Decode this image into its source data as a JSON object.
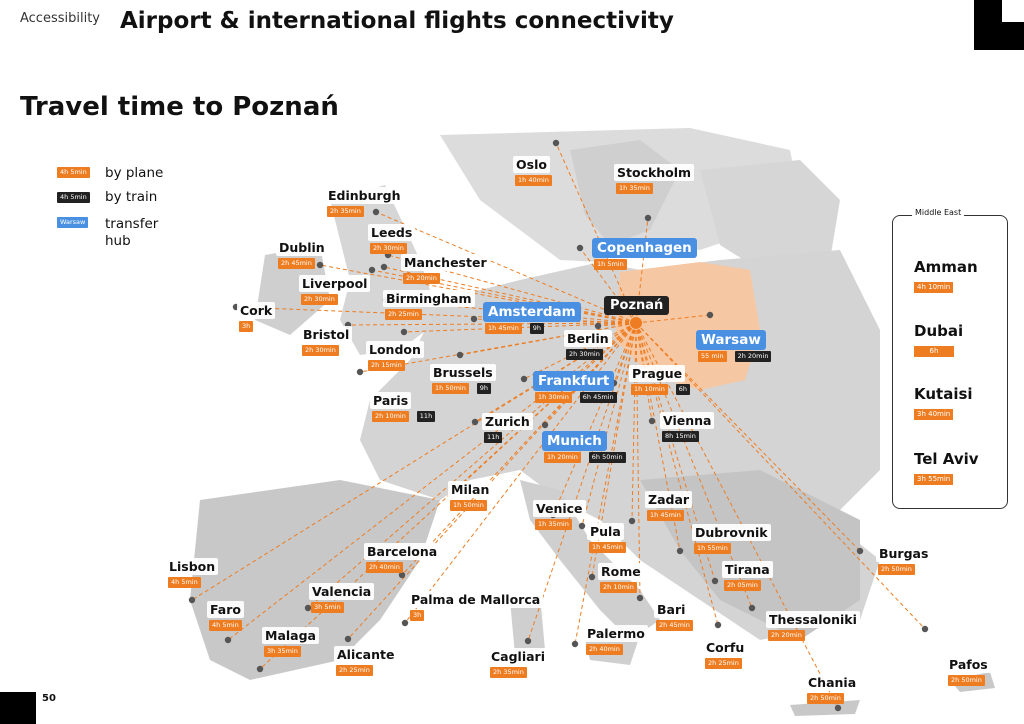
{
  "header": {
    "section": "Accessibility",
    "title": "Airport & international flights connectivity"
  },
  "page_title": "Travel time to Poznań",
  "page_number": "50",
  "colors": {
    "plane": "#ee7d22",
    "train": "#222222",
    "hub": "#4a90e2",
    "poland": "#f6c7a3",
    "land": "#d4d4d4"
  },
  "legend": {
    "plane_badge": "4h 5min",
    "plane_label": "by plane",
    "train_badge": "4h 5min",
    "train_label": "by train",
    "hub_badge": "Warsaw",
    "hub_label": "transfer hub"
  },
  "origin": {
    "name": "Poznań"
  },
  "cities": [
    {
      "name": "Oslo",
      "plane": "1h 40min",
      "hub": false
    },
    {
      "name": "Stockholm",
      "plane": "1h 35min",
      "hub": false
    },
    {
      "name": "Copenhagen",
      "plane": "1h 5min",
      "hub": true
    },
    {
      "name": "Edinburgh",
      "plane": "2h 35min",
      "hub": false
    },
    {
      "name": "Leeds",
      "plane": "2h 30min",
      "hub": false
    },
    {
      "name": "Dublin",
      "plane": "2h 45min",
      "hub": false
    },
    {
      "name": "Manchester",
      "plane": "2h 20min",
      "hub": false
    },
    {
      "name": "Liverpool",
      "plane": "2h 30min",
      "hub": false
    },
    {
      "name": "Birmingham",
      "plane": "2h 25min",
      "hub": false
    },
    {
      "name": "Cork",
      "plane": "3h",
      "hub": false
    },
    {
      "name": "Amsterdam",
      "plane": "1h 45min",
      "train": "9h",
      "hub": true
    },
    {
      "name": "Bristol",
      "plane": "2h 30min",
      "hub": false
    },
    {
      "name": "London",
      "plane": "2h 15min",
      "hub": false
    },
    {
      "name": "Berlin",
      "train": "2h 30min",
      "hub": false
    },
    {
      "name": "Warsaw",
      "plane": "55 min",
      "train": "2h 20min",
      "hub": true
    },
    {
      "name": "Brussels",
      "plane": "1h 50min",
      "train": "9h",
      "hub": false
    },
    {
      "name": "Frankfurt",
      "plane": "1h 30min",
      "train": "6h 45min",
      "hub": true
    },
    {
      "name": "Prague",
      "plane": "1h 10min",
      "train": "6h",
      "hub": false
    },
    {
      "name": "Paris",
      "plane": "2h 10min",
      "train": "11h",
      "hub": false
    },
    {
      "name": "Zurich",
      "train": "11h",
      "hub": false
    },
    {
      "name": "Vienna",
      "train": "8h 15min",
      "hub": false
    },
    {
      "name": "Munich",
      "plane": "1h 20min",
      "train": "6h 50min",
      "hub": true
    },
    {
      "name": "Milan",
      "plane": "1h 50min",
      "hub": false
    },
    {
      "name": "Zadar",
      "plane": "1h 45min",
      "hub": false
    },
    {
      "name": "Venice",
      "plane": "1h 35min",
      "hub": false
    },
    {
      "name": "Dubrovnik",
      "plane": "1h 55min",
      "hub": false
    },
    {
      "name": "Pula",
      "plane": "1h 45min",
      "hub": false
    },
    {
      "name": "Barcelona",
      "plane": "2h 40min",
      "hub": false
    },
    {
      "name": "Burgas",
      "plane": "2h 50min",
      "hub": false
    },
    {
      "name": "Lisbon",
      "plane": "4h 5min",
      "hub": false
    },
    {
      "name": "Rome",
      "plane": "2h 10min",
      "hub": false
    },
    {
      "name": "Tirana",
      "plane": "2h 05min",
      "hub": false
    },
    {
      "name": "Valencia",
      "plane": "3h 5min",
      "hub": false
    },
    {
      "name": "Palma de Mallorca",
      "plane": "3h",
      "hub": false
    },
    {
      "name": "Faro",
      "plane": "4h 5min",
      "hub": false
    },
    {
      "name": "Bari",
      "plane": "2h 45min",
      "hub": false
    },
    {
      "name": "Thessaloniki",
      "plane": "2h 20min",
      "hub": false
    },
    {
      "name": "Malaga",
      "plane": "3h 35min",
      "hub": false
    },
    {
      "name": "Palermo",
      "plane": "2h 40min",
      "hub": false
    },
    {
      "name": "Corfu",
      "plane": "2h 25min",
      "hub": false
    },
    {
      "name": "Alicante",
      "plane": "2h 25min",
      "hub": false
    },
    {
      "name": "Cagliari",
      "plane": "2h 35min",
      "hub": false
    },
    {
      "name": "Pafos",
      "plane": "2h 50min",
      "hub": false
    },
    {
      "name": "Chania",
      "plane": "2h 50min",
      "hub": false
    }
  ],
  "middle_east": {
    "title": "Middle East",
    "items": [
      {
        "name": "Amman",
        "time": "4h 10min"
      },
      {
        "name": "Dubai",
        "time": "6h"
      },
      {
        "name": "Kutaisi",
        "time": "3h 40min"
      },
      {
        "name": "Tel Aviv",
        "time": "3h 55min"
      }
    ]
  }
}
